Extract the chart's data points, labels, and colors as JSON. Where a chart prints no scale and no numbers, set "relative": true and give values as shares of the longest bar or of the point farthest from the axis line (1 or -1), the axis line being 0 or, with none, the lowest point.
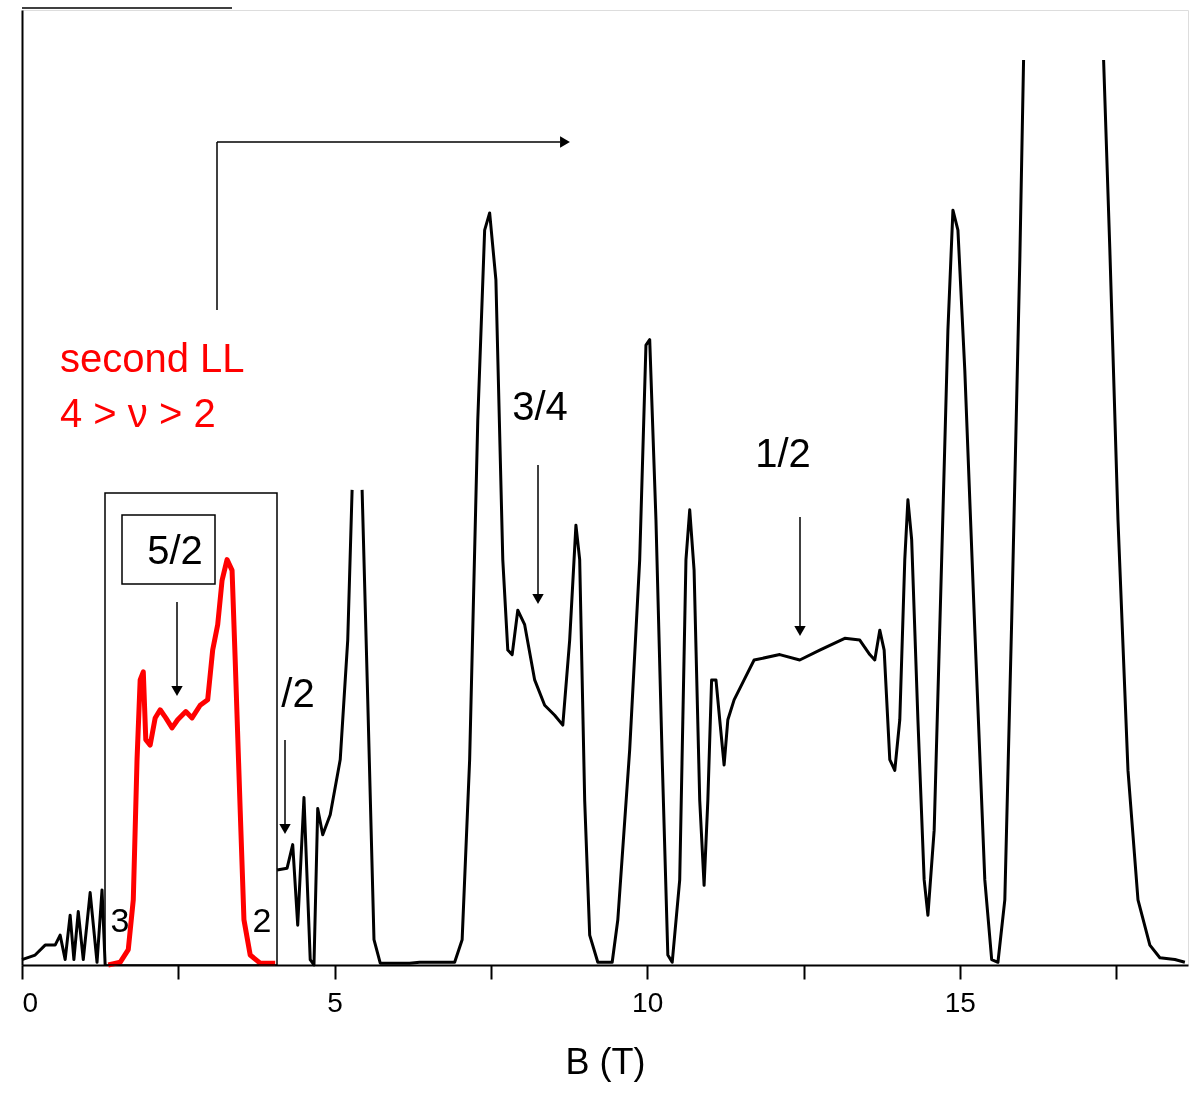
{
  "chart_data": {
    "type": "line",
    "relative": true,
    "xlabel": "B (T)",
    "xlim": [
      0,
      18.65
    ],
    "xticks": [
      0,
      {
        "value": 2.5,
        "label": null
      },
      5,
      {
        "value": 7.5,
        "label": null
      },
      10,
      {
        "value": 12.5,
        "label": null
      },
      15,
      {
        "value": 17.5,
        "label": null
      }
    ],
    "grid": false,
    "line_style": "solid",
    "marker": "none",
    "series": [
      {
        "color": "#000000",
        "x": [
          0.0,
          0.21,
          0.37,
          0.53,
          0.61,
          0.69,
          0.77,
          0.83,
          0.9,
          0.98,
          1.09,
          1.2,
          1.28,
          1.33,
          2.7,
          4.08,
          4.24,
          4.33,
          4.41,
          4.51,
          4.61,
          4.67,
          4.73,
          4.81,
          4.93,
          5.09,
          5.21,
          5.28,
          5.36,
          5.44,
          5.53,
          5.63,
          5.73,
          6.2,
          6.36,
          6.92,
          7.04,
          7.16,
          7.29,
          7.4,
          7.48,
          7.58,
          7.69,
          7.77,
          7.84,
          7.93,
          8.04,
          8.2,
          8.36,
          8.52,
          8.65,
          8.76,
          8.86,
          8.92,
          9.0,
          9.08,
          9.21,
          9.44,
          9.53,
          9.72,
          9.88,
          9.98,
          10.04,
          10.14,
          10.24,
          10.33,
          10.4,
          10.52,
          10.62,
          10.68,
          10.75,
          10.84,
          10.91,
          10.97,
          11.03,
          11.1,
          11.16,
          11.23,
          11.29,
          11.39,
          11.55,
          11.71,
          12.12,
          12.44,
          12.76,
          13.16,
          13.4,
          13.56,
          13.64,
          13.72,
          13.79,
          13.88,
          13.96,
          14.04,
          14.12,
          14.17,
          14.23,
          14.33,
          14.43,
          14.49,
          14.59,
          14.71,
          14.81,
          14.89,
          14.97,
          15.08,
          15.24,
          15.4,
          15.51,
          15.61,
          15.72,
          15.83,
          15.96,
          16.02,
          16.8,
          17.3,
          17.4,
          17.53,
          17.69,
          17.85,
          18.04,
          18.2,
          18.44,
          18.6
        ],
        "values": [
          0.006,
          0.011,
          0.022,
          0.022,
          0.033,
          0.006,
          0.055,
          0.006,
          0.059,
          0.006,
          0.08,
          0.003,
          0.083,
          0,
          null,
          0.105,
          0.107,
          0.133,
          0.044,
          0.185,
          0.006,
          0,
          0.173,
          0.144,
          0.166,
          0.227,
          0.359,
          0.525,
          null,
          0.525,
          0.293,
          0.028,
          0.002,
          0.002,
          0.003,
          0.003,
          0.028,
          0.227,
          0.602,
          0.812,
          0.831,
          0.757,
          0.448,
          0.348,
          0.343,
          0.392,
          0.376,
          0.315,
          0.287,
          0.276,
          0.265,
          0.359,
          0.486,
          0.448,
          0.182,
          0.033,
          0.003,
          0.003,
          0.05,
          0.238,
          0.448,
          0.685,
          0.691,
          0.492,
          0.227,
          0.011,
          0.003,
          0.094,
          0.448,
          0.503,
          0.436,
          0.182,
          0.088,
          0.182,
          0.315,
          0.315,
          0.271,
          0.221,
          0.271,
          0.293,
          0.315,
          0.337,
          0.343,
          0.337,
          0.348,
          0.361,
          0.359,
          0.343,
          0.337,
          0.37,
          0.348,
          0.227,
          0.215,
          0.271,
          0.448,
          0.514,
          0.47,
          0.271,
          0.094,
          0.055,
          0.149,
          0.448,
          0.702,
          0.834,
          0.812,
          0.657,
          0.37,
          0.094,
          0.006,
          0.003,
          0.072,
          0.381,
          0.779,
          1,
          null,
          1,
          0.79,
          0.492,
          0.215,
          0.072,
          0.022,
          0.008,
          0.006,
          0.003
        ]
      },
      {
        "color": "#ff0000",
        "x": [
          1.38,
          1.57,
          1.7,
          1.78,
          1.84,
          1.89,
          1.94,
          1.98,
          2.05,
          2.13,
          2.21,
          2.3,
          2.4,
          2.49,
          2.62,
          2.72,
          2.85,
          2.97,
          3.05,
          3.13,
          3.2,
          3.28,
          3.36,
          3.41,
          3.49,
          3.55,
          3.65,
          3.81,
          4.05
        ],
        "values": [
          0,
          0.003,
          0.017,
          0.072,
          0.227,
          0.315,
          0.324,
          0.249,
          0.243,
          0.273,
          0.282,
          0.273,
          0.262,
          0.271,
          0.28,
          0.273,
          0.287,
          0.293,
          0.348,
          0.376,
          0.425,
          0.448,
          0.436,
          0.337,
          0.171,
          0.05,
          0.011,
          0.002,
          0.002
        ]
      }
    ],
    "annotations": [
      "second LL",
      "4 > ν > 2",
      "5/2",
      "/2",
      "3/4",
      "1/2",
      "3",
      "2"
    ]
  }
}
